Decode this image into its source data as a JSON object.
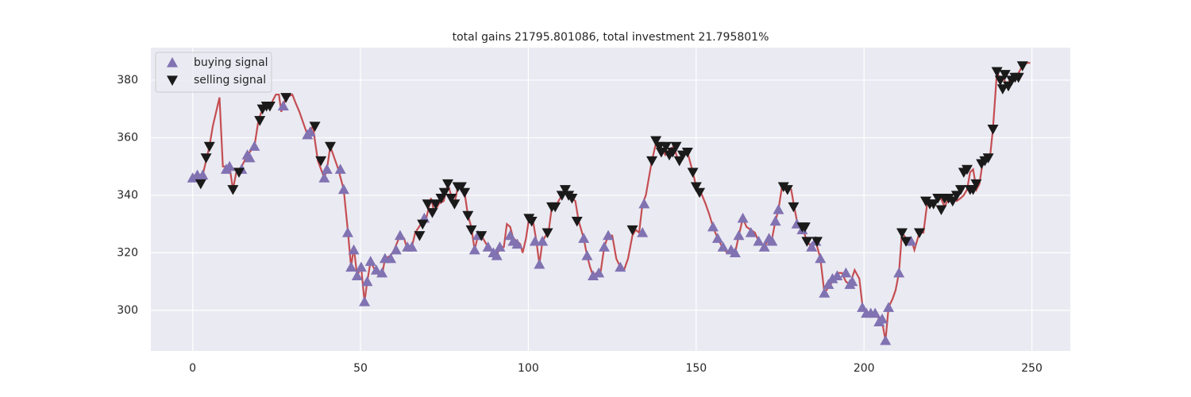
{
  "chart_data": {
    "type": "line",
    "title": "total gains 21795.801086, total investment 21.795801%",
    "x": [
      0,
      1.4,
      2.4,
      4,
      5,
      6,
      8,
      9,
      11,
      12,
      13,
      14.6,
      16.3,
      18.4,
      19.6,
      20.8,
      23,
      24.8,
      25.7,
      26.4,
      27.8,
      29.7,
      30.7,
      31.8,
      34.2,
      35.8,
      37.3,
      39.2,
      40,
      41,
      43.4,
      45,
      46.2,
      47.2,
      48,
      49,
      50.2,
      51.2,
      52,
      53,
      54.7,
      56.4,
      57.3,
      59,
      60,
      61.8,
      63,
      64,
      65.3,
      66.3,
      68,
      69.6,
      71,
      72,
      73.3,
      74.8,
      76,
      77,
      78,
      79,
      80,
      81,
      82,
      83,
      84,
      85,
      86,
      88,
      89.6,
      90.6,
      91.5,
      92.7,
      93.6,
      94.6,
      95.5,
      96.7,
      97.6,
      98.3,
      99.3,
      100.2,
      101.4,
      102.4,
      103.3,
      104.2,
      105.2,
      106,
      107,
      108,
      110,
      111,
      112,
      113,
      114,
      115,
      116.5,
      117.5,
      118.4,
      119.3,
      120.3,
      121.5,
      122.6,
      123.8,
      125,
      126.2,
      127.4,
      128.5,
      129.7,
      131,
      132,
      133,
      134,
      135,
      136.8,
      138.2,
      139.4,
      140.8,
      142,
      143.4,
      144.6,
      145.8,
      147.4,
      149,
      150,
      151.4,
      152.8,
      154,
      155,
      156.4,
      157.8,
      159.2,
      160.4,
      161.6,
      162.7,
      163.9,
      165,
      166.3,
      167.5,
      168.6,
      170.3,
      171.7,
      172.6,
      173.6,
      174.5,
      175.7,
      176.9,
      178.3,
      179.2,
      180.2,
      181.6,
      183,
      184.4,
      185.6,
      187,
      188.2,
      189.4,
      190.6,
      192,
      193.4,
      194.6,
      195.8,
      197.2,
      198.6,
      199.5,
      200.7,
      202,
      203.3,
      204.5,
      205.4,
      206.4,
      207.3,
      208.5,
      209.4,
      210.4,
      211.3,
      212.5,
      214,
      215,
      216.5,
      217.7,
      218.9,
      220.3,
      221.7,
      222.9,
      224,
      225.2,
      226.4,
      227.6,
      228.8,
      229.7,
      230.7,
      231.6,
      232.5,
      233.5,
      234.4,
      235.4,
      236.6,
      237.5,
      238.4,
      239.6,
      240.6,
      241.5,
      242.5,
      243.4,
      244.3,
      245.8,
      247.2,
      248.6,
      249.5
    ],
    "values": [
      346,
      348,
      344,
      352,
      357,
      364,
      374,
      350,
      350,
      342,
      348,
      350,
      354,
      357,
      366,
      370,
      371,
      375,
      375,
      369,
      374,
      375,
      372,
      369,
      361,
      364,
      352,
      346,
      349,
      357,
      349,
      342,
      328,
      315,
      322,
      312,
      315,
      303,
      310,
      317,
      313,
      312,
      318,
      319,
      321,
      326,
      325,
      321,
      322,
      327,
      330,
      332,
      339,
      334,
      337,
      338,
      344,
      340,
      337,
      343,
      343,
      341,
      333,
      329,
      321,
      326,
      326,
      322,
      320,
      319,
      322,
      322,
      330,
      329,
      325,
      324,
      323,
      320,
      325,
      332,
      331,
      324,
      316,
      324,
      326,
      327,
      336,
      336,
      340,
      342,
      340,
      339,
      338,
      331,
      325,
      319,
      315,
      312,
      313,
      313,
      322,
      326,
      326,
      318,
      315,
      314,
      318,
      326,
      328,
      327,
      337,
      340,
      352,
      359,
      357,
      354,
      356,
      357,
      352,
      353,
      355,
      348,
      343,
      341,
      337,
      333,
      329,
      325,
      322,
      320,
      321,
      320,
      326,
      332,
      329,
      328,
      327,
      324,
      322,
      325,
      325,
      331,
      335,
      344,
      343,
      342,
      336,
      330,
      329,
      324,
      322,
      324,
      318,
      306,
      308,
      310,
      313,
      313,
      310,
      309,
      314,
      311,
      302,
      299,
      299,
      299,
      297,
      296,
      289.5,
      301,
      304,
      307,
      313,
      327,
      325,
      325,
      321,
      327,
      327,
      338,
      337,
      338,
      339,
      336,
      339,
      339,
      338,
      339,
      340,
      342,
      348,
      349,
      342,
      344,
      352,
      352,
      353,
      363,
      383,
      380,
      381,
      378,
      380,
      381,
      382,
      385,
      386,
      386
    ],
    "color": "#c44e52",
    "markers": [
      {
        "name": "buying signal",
        "color": "#8172b2",
        "marker": "^",
        "x": [
          0,
          1.4,
          3,
          10,
          11,
          14.6,
          16.3,
          17,
          18.4,
          27,
          34.2,
          35,
          39.2,
          40,
          44,
          45,
          46.2,
          47.2,
          48,
          49,
          50.2,
          51.2,
          52,
          53,
          54.7,
          56.4,
          57.3,
          59,
          60.6,
          61.8,
          64,
          65.3,
          69,
          84,
          85,
          88,
          89.6,
          90.6,
          91.5,
          94.6,
          95.5,
          96.7,
          102,
          103.3,
          104.2,
          116.5,
          117.5,
          119.3,
          121,
          122.6,
          123.8,
          127.4,
          134,
          134.5,
          155,
          156.4,
          158,
          160.4,
          161.6,
          162.7,
          163.9,
          166.3,
          168.6,
          170.3,
          171.7,
          172.6,
          173.6,
          174.5,
          180,
          181.6,
          184.4,
          185.6,
          187,
          188.2,
          189.4,
          190.6,
          192,
          194.6,
          195.8,
          196.5,
          199.5,
          200.7,
          202,
          203.3,
          204.5,
          205.4,
          206.4,
          207.3,
          210.4,
          214
        ],
        "values": [
          346,
          347,
          347,
          349,
          350,
          349,
          354,
          353,
          357,
          371,
          361,
          362,
          346,
          349,
          349,
          342,
          327,
          315,
          321,
          312,
          315,
          303,
          310,
          317,
          314,
          313,
          318,
          318,
          321,
          326,
          322,
          322,
          332,
          321,
          326,
          322,
          320,
          319,
          322,
          326,
          324,
          323,
          324,
          316,
          324,
          325,
          319,
          312,
          313,
          322,
          326,
          315,
          327,
          337,
          329,
          325,
          322,
          321,
          320,
          326,
          332,
          327,
          324,
          322,
          325,
          324,
          331,
          335,
          330,
          328,
          322,
          324,
          318,
          306,
          309,
          311,
          312,
          313,
          309,
          310,
          301,
          299,
          299,
          299,
          296,
          297,
          289.5,
          301,
          313,
          324
        ]
      },
      {
        "name": "selling signal",
        "color": "#1a1a1a",
        "marker": "v",
        "x": [
          2.4,
          4,
          5,
          12,
          13.8,
          20,
          20.8,
          22,
          23,
          27.8,
          36.4,
          38.2,
          41,
          67.6,
          68.5,
          70,
          71.4,
          72.4,
          74,
          75,
          76,
          77,
          78,
          79,
          80,
          81,
          82,
          83,
          86,
          100.2,
          101,
          105.7,
          107,
          108,
          110,
          111,
          112,
          113,
          114.5,
          131,
          136.8,
          138,
          139,
          139.6,
          141,
          142,
          143,
          144,
          145,
          146,
          147.4,
          149,
          150,
          151,
          176,
          177.2,
          179,
          181.6,
          182.4,
          183,
          186,
          211.3,
          212.5,
          216.5,
          218.4,
          219.6,
          220.7,
          222,
          223,
          224,
          225.2,
          226.4,
          227.6,
          228.8,
          229.7,
          230.7,
          231.6,
          232.5,
          233.4,
          235,
          236,
          237,
          238.4,
          239.6,
          240.6,
          241.3,
          242,
          243,
          244,
          245,
          246,
          247.2
        ],
        "values": [
          344,
          353,
          357,
          342,
          348,
          366,
          370,
          371,
          371,
          374,
          364,
          352,
          357,
          326,
          330,
          337,
          334,
          337,
          339,
          341,
          344,
          339,
          337,
          343,
          343,
          341,
          333,
          328,
          326,
          332,
          331,
          327,
          336,
          336,
          340,
          342,
          340,
          339,
          331,
          328,
          352,
          359,
          357,
          355,
          357,
          354,
          355,
          357,
          352,
          354,
          355,
          348,
          343,
          341,
          343,
          342,
          336,
          329,
          329,
          324,
          324,
          327,
          324,
          327,
          338,
          337,
          337,
          339,
          335,
          339,
          339,
          338,
          340,
          342,
          348,
          349,
          342,
          342,
          344,
          351,
          352,
          353,
          363,
          383,
          380,
          377,
          382,
          378,
          380,
          381,
          381,
          385
        ]
      }
    ],
    "xlim": [
      -12.45,
      261.45
    ],
    "ylim": [
      285.9,
      391.3
    ],
    "xticks": [
      0,
      50,
      100,
      150,
      200,
      250
    ],
    "yticks": [
      300,
      320,
      340,
      360,
      380
    ],
    "grid": true,
    "legend": "upper left"
  }
}
